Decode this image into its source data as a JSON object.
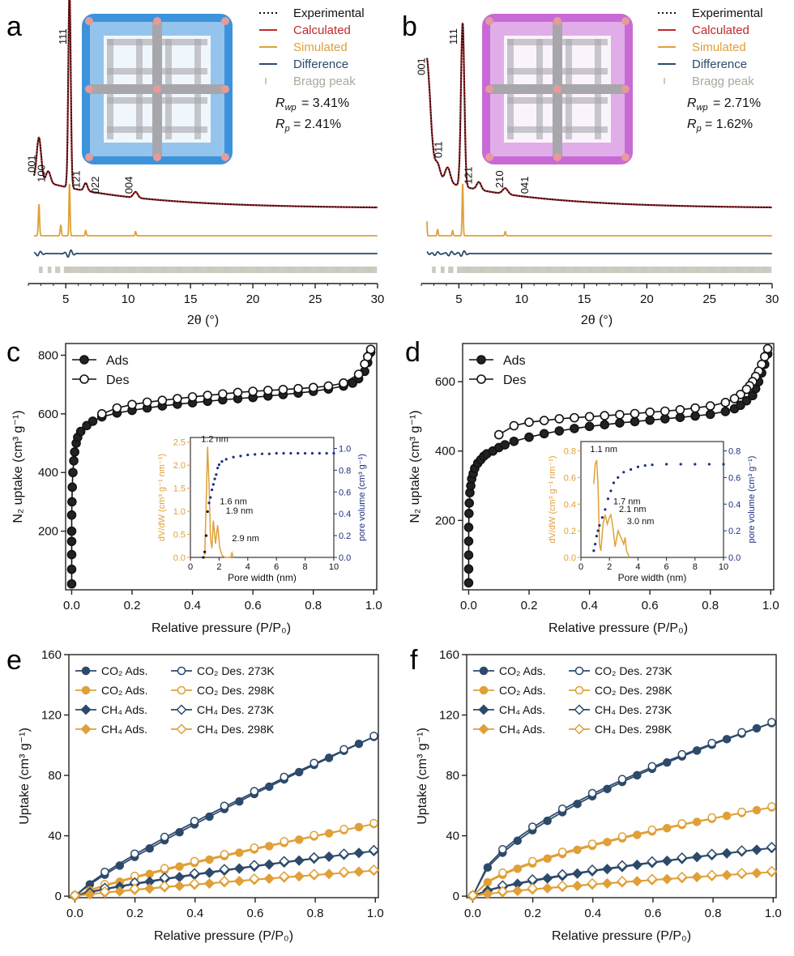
{
  "colors": {
    "black": "#111111",
    "red": "#c0282b",
    "orange": "#e0a037",
    "blue": "#2c4a6b",
    "bragg": "#c9c9bd",
    "navy": "#1c2f80",
    "cage_blue": "#3c93dc",
    "cage_magenta": "#c86ad6",
    "cage_gray": "#a7a7ab"
  },
  "panels": {
    "a": {
      "letter": "a"
    },
    "b": {
      "letter": "b"
    },
    "c": {
      "letter": "c"
    },
    "d": {
      "letter": "d"
    },
    "e": {
      "letter": "e"
    },
    "f": {
      "letter": "f"
    }
  },
  "chart_data": [
    {
      "id": "a",
      "type": "line",
      "title": "",
      "xlabel": "2θ (°)",
      "ylabel": "",
      "xlim": [
        2,
        30
      ],
      "xticks": [
        5,
        10,
        15,
        20,
        25,
        30
      ],
      "legend": [
        "Experimental",
        "Calculated",
        "Simulated",
        "Difference",
        "Bragg peak"
      ],
      "stats": {
        "rwp": "= 3.41%",
        "rp": "= 2.41%"
      },
      "peak_labels": [
        {
          "text": "111",
          "x": 5.3,
          "level": 0.97
        },
        {
          "text": "001",
          "x": 2.8,
          "level": 0.32
        },
        {
          "text": "100",
          "x": 3.6,
          "level": 0.27
        },
        {
          "text": "121",
          "x": 6.4,
          "level": 0.24
        },
        {
          "text": "022",
          "x": 7.9,
          "level": 0.21
        },
        {
          "text": "004",
          "x": 10.6,
          "level": 0.21
        }
      ],
      "peaks": [
        {
          "x": 2.85,
          "h": 0.22,
          "w": 0.25
        },
        {
          "x": 3.6,
          "h": 0.06,
          "w": 0.25
        },
        {
          "x": 5.3,
          "h": 1.0,
          "w": 0.14
        },
        {
          "x": 6.6,
          "h": 0.04,
          "w": 0.2
        },
        {
          "x": 10.6,
          "h": 0.03,
          "w": 0.25
        }
      ],
      "baseline": 0.16,
      "sim_peaks": [
        {
          "x": 2.85,
          "h": 0.6,
          "w": 0.07
        },
        {
          "x": 4.6,
          "h": 0.2,
          "w": 0.07
        },
        {
          "x": 5.3,
          "h": 1.0,
          "w": 0.06
        },
        {
          "x": 6.6,
          "h": 0.1,
          "w": 0.06
        },
        {
          "x": 10.6,
          "h": 0.08,
          "w": 0.06
        }
      ],
      "diff_peaks": [
        {
          "x": 2.85,
          "h": 0.5
        },
        {
          "x": 5.3,
          "h": 0.8
        }
      ]
    },
    {
      "id": "b",
      "type": "line",
      "title": "",
      "xlabel": "2θ (°)",
      "ylabel": "",
      "xlim": [
        2,
        30
      ],
      "xticks": [
        5,
        10,
        15,
        20,
        25,
        30
      ],
      "legend": [
        "Experimental",
        "Calculated",
        "Simulated",
        "Difference",
        "Bragg peak"
      ],
      "stats": {
        "rwp": "= 2.71%",
        "rp": "= 1.62%"
      },
      "peak_labels": [
        {
          "text": "111",
          "x": 5.1,
          "level": 0.97
        },
        {
          "text": "001",
          "x": 2.55,
          "level": 0.82
        },
        {
          "text": "011",
          "x": 3.9,
          "level": 0.39
        },
        {
          "text": "121",
          "x": 6.3,
          "level": 0.26
        },
        {
          "text": "210",
          "x": 8.8,
          "level": 0.24
        },
        {
          "text": "041",
          "x": 10.8,
          "level": 0.21
        }
      ],
      "peaks": [
        {
          "x": 2.4,
          "h": 0.62,
          "w": 0.45
        },
        {
          "x": 3.3,
          "h": 0.08,
          "w": 0.3
        },
        {
          "x": 4.1,
          "h": 0.08,
          "w": 0.3
        },
        {
          "x": 5.3,
          "h": 0.84,
          "w": 0.19
        },
        {
          "x": 6.6,
          "h": 0.04,
          "w": 0.25
        },
        {
          "x": 8.7,
          "h": 0.03,
          "w": 0.3
        }
      ],
      "baseline": 0.17,
      "sim_peaks": [
        {
          "x": 2.4,
          "h": 0.55,
          "w": 0.06
        },
        {
          "x": 3.3,
          "h": 0.12,
          "w": 0.06
        },
        {
          "x": 4.5,
          "h": 0.1,
          "w": 0.06
        },
        {
          "x": 5.3,
          "h": 1.0,
          "w": 0.06
        },
        {
          "x": 8.7,
          "h": 0.08,
          "w": 0.06
        }
      ],
      "diff_peaks": [
        {
          "x": 2.3,
          "h": 0.5
        },
        {
          "x": 3.2,
          "h": 0.4
        },
        {
          "x": 4.3,
          "h": 0.5
        },
        {
          "x": 5.3,
          "h": 0.6
        }
      ]
    },
    {
      "id": "c",
      "type": "scatter",
      "title": "",
      "xlabel": "Relative pressure (P/P₀)",
      "ylabel": "N₂ uptake (cm³ g⁻¹)",
      "xlim": [
        -0.02,
        1.01
      ],
      "ylim": [
        0,
        840
      ],
      "xticks": [
        0.0,
        0.2,
        0.4,
        0.6,
        0.8,
        1.0
      ],
      "yticks": [
        200,
        400,
        600,
        800
      ],
      "legend": [
        "Ads",
        "Des"
      ],
      "series": [
        {
          "name": "Ads",
          "filled": true,
          "x": [
            0.0,
            0.0,
            0.0,
            0.0,
            0.0,
            0.0,
            0.001,
            0.002,
            0.004,
            0.007,
            0.01,
            0.015,
            0.02,
            0.03,
            0.05,
            0.07,
            0.1,
            0.15,
            0.2,
            0.25,
            0.3,
            0.35,
            0.4,
            0.45,
            0.5,
            0.55,
            0.6,
            0.65,
            0.7,
            0.75,
            0.8,
            0.85,
            0.9,
            0.93,
            0.95,
            0.97,
            0.98,
            0.99
          ],
          "y": [
            20,
            70,
            120,
            165,
            200,
            255,
            300,
            350,
            400,
            440,
            470,
            500,
            520,
            540,
            560,
            575,
            590,
            603,
            612,
            620,
            627,
            633,
            638,
            643,
            648,
            652,
            656,
            661,
            666,
            671,
            677,
            685,
            695,
            705,
            720,
            745,
            775,
            810
          ]
        },
        {
          "name": "Des",
          "filled": false,
          "x": [
            0.99,
            0.98,
            0.97,
            0.95,
            0.9,
            0.85,
            0.8,
            0.75,
            0.7,
            0.65,
            0.6,
            0.55,
            0.5,
            0.45,
            0.4,
            0.35,
            0.3,
            0.25,
            0.2,
            0.15,
            0.1
          ],
          "y": [
            820,
            795,
            770,
            735,
            705,
            695,
            690,
            686,
            683,
            680,
            677,
            673,
            668,
            663,
            658,
            652,
            646,
            640,
            632,
            620,
            600
          ]
        }
      ],
      "inset": {
        "xlabel": "Pore width (nm)",
        "ylabel": "dV/dW (cm³ g⁻¹ nm⁻¹)",
        "y2label": "pore volume (cm³ g⁻¹)",
        "xlim": [
          0,
          10
        ],
        "ylim": [
          0,
          2.6
        ],
        "y2lim": [
          0,
          1.1
        ],
        "xticks": [
          0,
          2,
          4,
          6,
          8,
          10
        ],
        "yticks": [
          0.0,
          0.5,
          1.0,
          1.5,
          2.0,
          2.5
        ],
        "y2ticks": [
          0.0,
          0.2,
          0.4,
          0.6,
          0.8,
          1.0
        ],
        "psd": {
          "x": [
            1.0,
            1.1,
            1.2,
            1.3,
            1.4,
            1.5,
            1.6,
            1.75,
            1.9,
            2.05,
            2.2,
            2.4,
            2.6,
            2.8,
            2.9,
            3.0
          ],
          "y": [
            0.05,
            1.2,
            2.4,
            1.6,
            0.4,
            0.2,
            0.8,
            0.3,
            0.7,
            0.2,
            0.05,
            0.0,
            0.0,
            0.0,
            0.1,
            0.0
          ]
        },
        "cum": {
          "x": [
            0.9,
            1.0,
            1.1,
            1.2,
            1.3,
            1.4,
            1.5,
            1.6,
            1.7,
            1.8,
            1.9,
            2.0,
            2.2,
            2.5,
            3.0,
            3.5,
            4.0,
            4.5,
            5.0,
            5.5,
            6.0,
            6.5,
            7.0,
            7.5,
            8.0,
            8.5,
            9.0,
            9.5,
            10.0
          ],
          "y": [
            0.0,
            0.05,
            0.2,
            0.42,
            0.5,
            0.55,
            0.62,
            0.67,
            0.72,
            0.76,
            0.82,
            0.85,
            0.88,
            0.9,
            0.92,
            0.93,
            0.94,
            0.945,
            0.95,
            0.95,
            0.955,
            0.955,
            0.955,
            0.955,
            0.955,
            0.955,
            0.955,
            0.955,
            0.955
          ]
        },
        "annotations": [
          "1.2 nm",
          "1.6 nm",
          "1.9 nm",
          "2.9 nm"
        ]
      }
    },
    {
      "id": "d",
      "type": "scatter",
      "title": "",
      "xlabel": "Relative pressure (P/P₀)",
      "ylabel": "N₂ uptake (cm³ g⁻¹)",
      "xlim": [
        -0.02,
        1.01
      ],
      "ylim": [
        0,
        710
      ],
      "xticks": [
        0.0,
        0.2,
        0.4,
        0.6,
        0.8,
        1.0
      ],
      "yticks": [
        200,
        400,
        600
      ],
      "legend": [
        "Ads",
        "Des"
      ],
      "series": [
        {
          "name": "Ads",
          "filled": true,
          "x": [
            0.0,
            0.0,
            0.0,
            0.0,
            0.0,
            0.001,
            0.002,
            0.004,
            0.007,
            0.01,
            0.015,
            0.02,
            0.03,
            0.04,
            0.05,
            0.06,
            0.08,
            0.1,
            0.12,
            0.15,
            0.2,
            0.25,
            0.3,
            0.35,
            0.4,
            0.45,
            0.5,
            0.55,
            0.6,
            0.65,
            0.7,
            0.75,
            0.8,
            0.85,
            0.88,
            0.9,
            0.92,
            0.94,
            0.95,
            0.96,
            0.97,
            0.98,
            0.99
          ],
          "y": [
            20,
            60,
            100,
            140,
            180,
            220,
            250,
            280,
            300,
            320,
            335,
            350,
            365,
            375,
            385,
            392,
            400,
            410,
            418,
            428,
            440,
            450,
            458,
            465,
            471,
            476,
            481,
            485,
            489,
            493,
            497,
            501,
            506,
            514,
            522,
            532,
            545,
            560,
            580,
            600,
            625,
            650,
            680
          ]
        },
        {
          "name": "Des",
          "filled": false,
          "x": [
            0.99,
            0.98,
            0.97,
            0.96,
            0.95,
            0.94,
            0.93,
            0.92,
            0.9,
            0.88,
            0.85,
            0.8,
            0.75,
            0.7,
            0.65,
            0.6,
            0.55,
            0.5,
            0.45,
            0.4,
            0.35,
            0.3,
            0.25,
            0.2,
            0.15,
            0.1
          ],
          "y": [
            695,
            672,
            650,
            630,
            615,
            600,
            588,
            578,
            563,
            551,
            540,
            530,
            524,
            519,
            515,
            512,
            508,
            505,
            502,
            499,
            496,
            493,
            488,
            483,
            473,
            447
          ]
        }
      ],
      "inset": {
        "xlabel": "Pore width (nm)",
        "ylabel": "dV/dW (cm³ g⁻¹ nm⁻¹)",
        "y2label": "pore volume (cm³ g⁻¹)",
        "xlim": [
          0,
          10
        ],
        "ylim": [
          0,
          0.87
        ],
        "y2lim": [
          0,
          0.87
        ],
        "xticks": [
          0,
          2,
          4,
          6,
          8,
          10
        ],
        "yticks": [
          0.0,
          0.2,
          0.4,
          0.6,
          0.8
        ],
        "y2ticks": [
          0.0,
          0.2,
          0.4,
          0.6,
          0.8
        ],
        "psd": {
          "x": [
            0.9,
            1.0,
            1.1,
            1.2,
            1.3,
            1.4,
            1.55,
            1.7,
            1.85,
            2.0,
            2.1,
            2.25,
            2.4,
            2.6,
            2.8,
            3.0,
            3.1,
            3.2,
            3.4
          ],
          "y": [
            0.55,
            0.7,
            0.73,
            0.55,
            0.1,
            0.05,
            0.25,
            0.32,
            0.25,
            0.3,
            0.32,
            0.22,
            0.08,
            0.2,
            0.15,
            0.1,
            0.15,
            0.05,
            0.0
          ]
        },
        "cum": {
          "x": [
            0.9,
            1.0,
            1.1,
            1.2,
            1.3,
            1.5,
            1.7,
            1.9,
            2.1,
            2.3,
            2.6,
            3.0,
            3.5,
            4.0,
            4.5,
            5.0,
            6.0,
            7.0,
            8.0,
            9.0,
            10.0
          ],
          "y": [
            0.05,
            0.1,
            0.16,
            0.2,
            0.24,
            0.3,
            0.36,
            0.44,
            0.5,
            0.56,
            0.6,
            0.64,
            0.66,
            0.68,
            0.69,
            0.695,
            0.7,
            0.7,
            0.7,
            0.7,
            0.7
          ]
        },
        "annotations": [
          "1.1 nm",
          "1.7 nm",
          "2.1 nm",
          "3.0 nm"
        ]
      }
    },
    {
      "id": "e",
      "type": "line",
      "title": "",
      "xlabel": "Relative pressure (P/P₀)",
      "ylabel": "Uptake (cm³ g⁻¹)",
      "xlim": [
        -0.02,
        1.01
      ],
      "ylim": [
        -1,
        160
      ],
      "xticks": [
        0.0,
        0.2,
        0.4,
        0.6,
        0.8,
        1.0
      ],
      "yticks": [
        0,
        40,
        80,
        120,
        160
      ],
      "legend": [
        {
          "ads": "CO₂ Ads.",
          "des": "CO₂ Des. 273K"
        },
        {
          "ads": "CO₂ Ads.",
          "des": "CO₂ Des. 298K"
        },
        {
          "ads": "CH₄ Ads.",
          "des": "CH₄ Des. 273K"
        },
        {
          "ads": "CH₄ Ads.",
          "des": "CH₄ Des. 298K"
        }
      ],
      "series": [
        {
          "name": "CO₂ 273K",
          "gas": "CO2",
          "temp": "273K",
          "max": 106,
          "power": 0.87
        },
        {
          "name": "CO₂ 298K",
          "gas": "CO2",
          "temp": "298K",
          "max": 48,
          "power": 0.85
        },
        {
          "name": "CH₄ 273K",
          "gas": "CH4",
          "temp": "273K",
          "max": 30,
          "power": 0.82
        },
        {
          "name": "CH₄ 298K",
          "gas": "CH4",
          "temp": "298K",
          "max": 17,
          "power": 0.88
        }
      ]
    },
    {
      "id": "f",
      "type": "line",
      "title": "",
      "xlabel": "Relative pressure (P/P₀)",
      "ylabel": "Uptake (cm³ g⁻¹)",
      "xlim": [
        -0.02,
        1.01
      ],
      "ylim": [
        -1,
        160
      ],
      "xticks": [
        0.0,
        0.2,
        0.4,
        0.6,
        0.8,
        1.0
      ],
      "yticks": [
        0,
        40,
        80,
        120,
        160
      ],
      "legend": [
        {
          "ads": "CO₂ Ads.",
          "des": "CO₂ Des. 273K"
        },
        {
          "ads": "CO₂ Ads.",
          "des": "CO₂ Des. 298K"
        },
        {
          "ads": "CH₄ Ads.",
          "des": "CH₄ Des. 273K"
        },
        {
          "ads": "CH₄ Ads.",
          "des": "CH₄ Des. 298K"
        }
      ],
      "series": [
        {
          "name": "CO₂ 273K",
          "gas": "CO2",
          "temp": "273K",
          "max": 115,
          "power": 0.6
        },
        {
          "name": "CO₂ 298K",
          "gas": "CO2",
          "temp": "298K",
          "max": 59,
          "power": 0.62
        },
        {
          "name": "CH₄ 273K",
          "gas": "CH4",
          "temp": "273K",
          "max": 32,
          "power": 0.72
        },
        {
          "name": "CH₄ 298K",
          "gas": "CH4",
          "temp": "298K",
          "max": 16,
          "power": 0.8
        }
      ]
    }
  ]
}
